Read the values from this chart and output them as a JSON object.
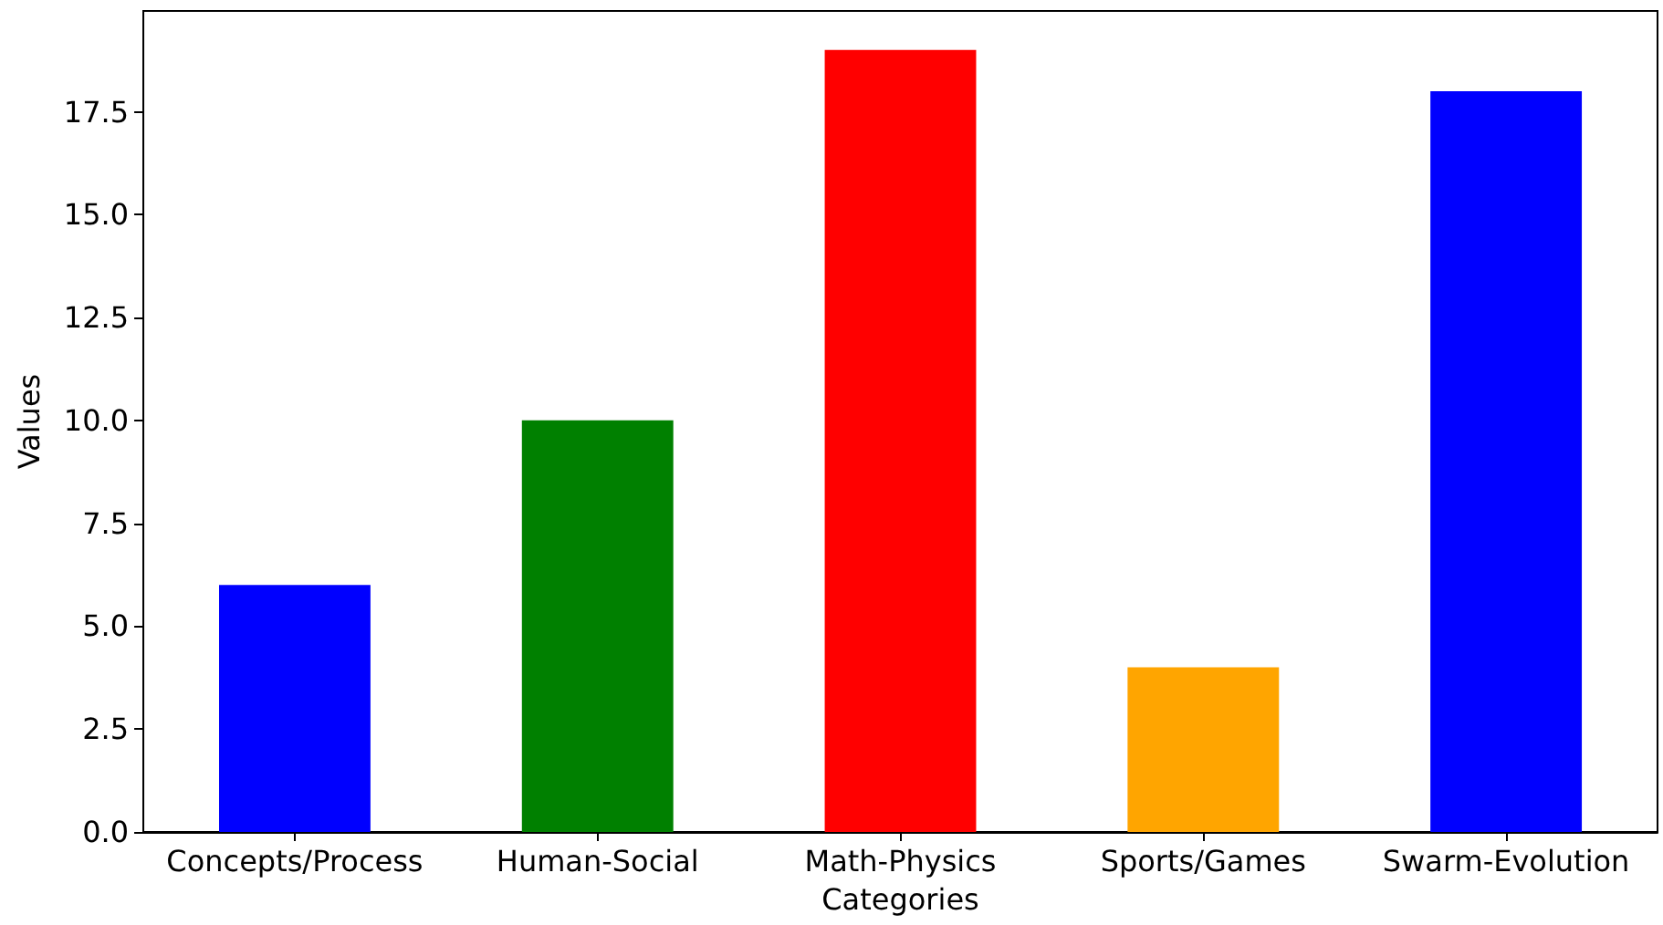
{
  "chart_data": {
    "type": "bar",
    "xlabel": "Categories",
    "ylabel": "Values",
    "categories": [
      "Concepts/Process",
      "Human-Social",
      "Math-Physics",
      "Sports/Games",
      "Swarm-Evolution"
    ],
    "values": [
      6,
      10,
      19,
      4,
      18
    ],
    "colors": [
      "#0000ff",
      "#008000",
      "#ff0000",
      "#ffa500",
      "#0000ff"
    ],
    "ylim": [
      0,
      19.95
    ],
    "yticks": [
      {
        "value": 0,
        "label": "0.0"
      },
      {
        "value": 2.5,
        "label": "2.5"
      },
      {
        "value": 5,
        "label": "5.0"
      },
      {
        "value": 7.5,
        "label": "7.5"
      },
      {
        "value": 10,
        "label": "10.0"
      },
      {
        "value": 12.5,
        "label": "12.5"
      },
      {
        "value": 15,
        "label": "15.0"
      },
      {
        "value": 17.5,
        "label": "17.5"
      }
    ],
    "grid": false
  }
}
